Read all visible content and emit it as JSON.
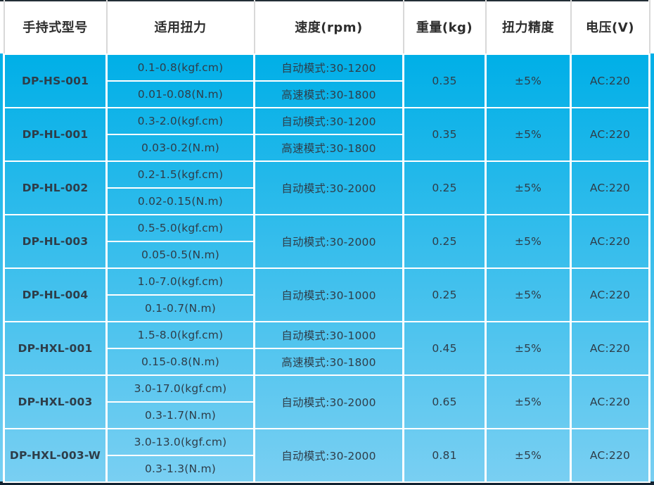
{
  "table": {
    "headers": [
      "手持式型号",
      "适用扭力",
      "速度(rpm)",
      "重量(kg)",
      "扭力精度",
      "电压(V)"
    ],
    "rows": [
      {
        "model": "DP-HS-001",
        "torque": [
          "0.1-0.8(kgf.cm)",
          "0.01-0.08(N.m)"
        ],
        "speed": [
          "自动模式:30-1200",
          "高速模式:30-1800"
        ],
        "weight": "0.35",
        "accuracy": "±5%",
        "voltage": "AC:220"
      },
      {
        "model": "DP-HL-001",
        "torque": [
          "0.3-2.0(kgf.cm)",
          "0.03-0.2(N.m)"
        ],
        "speed": [
          "自动模式:30-1200",
          "高速模式:30-1800"
        ],
        "weight": "0.35",
        "accuracy": "±5%",
        "voltage": "AC:220"
      },
      {
        "model": "DP-HL-002",
        "torque": [
          "0.2-1.5(kgf.cm)",
          "0.02-0.15(N.m)"
        ],
        "speed": [
          "自动模式:30-2000"
        ],
        "weight": "0.25",
        "accuracy": "±5%",
        "voltage": "AC:220"
      },
      {
        "model": "DP-HL-003",
        "torque": [
          "0.5-5.0(kgf.cm)",
          "0.05-0.5(N.m)"
        ],
        "speed": [
          "自动模式:30-2000"
        ],
        "weight": "0.25",
        "accuracy": "±5%",
        "voltage": "AC:220"
      },
      {
        "model": "DP-HL-004",
        "torque": [
          "1.0-7.0(kgf.cm)",
          "0.1-0.7(N.m)"
        ],
        "speed": [
          "自动模式:30-1000"
        ],
        "weight": "0.25",
        "accuracy": "±5%",
        "voltage": "AC:220"
      },
      {
        "model": "DP-HXL-001",
        "torque": [
          "1.5-8.0(kgf.cm)",
          "0.15-0.8(N.m)"
        ],
        "speed": [
          "自动模式:30-1000",
          "高速模式:30-1800"
        ],
        "weight": "0.45",
        "accuracy": "±5%",
        "voltage": "AC:220"
      },
      {
        "model": "DP-HXL-003",
        "torque": [
          "3.0-17.0(kgf.cm)",
          "0.3-1.7(N.m)"
        ],
        "speed": [
          "自动模式:30-2000"
        ],
        "weight": "0.65",
        "accuracy": "±5%",
        "voltage": "AC:220"
      },
      {
        "model": "DP-HXL-003-W",
        "torque": [
          "3.0-13.0(kgf.cm)",
          "0.3-1.3(N.m)"
        ],
        "speed": [
          "自动模式:30-2000"
        ],
        "weight": "0.81",
        "accuracy": "±5%",
        "voltage": "AC:220"
      }
    ]
  },
  "colors": {
    "body_gradient_top": "#00afe7",
    "body_gradient_bottom": "#79cff2",
    "header_background": "#ffffff",
    "header_divider": "#d8d8d8",
    "cell_border": "#ffffff",
    "top_border": "#232e36",
    "bottom_border": "#122230",
    "header_text": "#2d2d2d",
    "model_text": "#191c1f",
    "value_text": "#2e3d49"
  }
}
